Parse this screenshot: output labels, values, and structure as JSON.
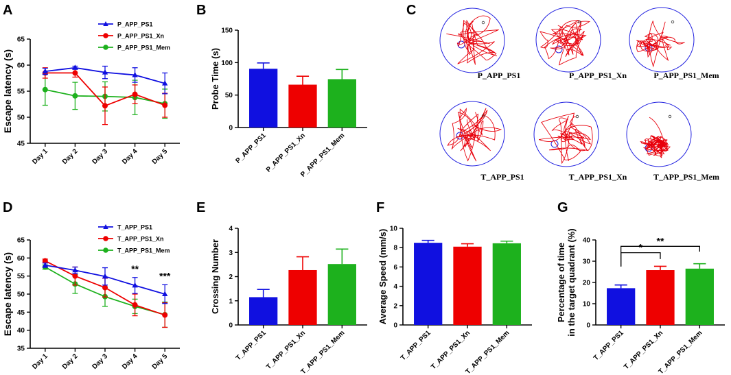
{
  "panels": {
    "A": "A",
    "B": "B",
    "C": "C",
    "D": "D",
    "E": "E",
    "F": "F",
    "G": "G"
  },
  "mazes": {
    "top": [
      "P_APP_PS1",
      "P_APP_PS1_Xn",
      "P_APP_PS1_Mem"
    ],
    "bottom": [
      "T_APP_PS1",
      "T_APP_PS1_Xn",
      "T_APP_PS1_Mem"
    ],
    "path_color": "#e8000b",
    "ring_color": "#2020e0"
  },
  "colors": {
    "blue": "#1010e0",
    "red": "#ee0000",
    "green": "#1db11d"
  },
  "chart_data": [
    {
      "id": "A",
      "type": "line",
      "ylabel": "Escape latency (s)",
      "xlabel": "",
      "categories": [
        "Day 1",
        "Day 2",
        "Day 3",
        "Day 4",
        "Day 5"
      ],
      "ylim": [
        45,
        65
      ],
      "yticks": [
        45,
        50,
        55,
        60,
        65
      ],
      "series": [
        {
          "name": "P_APP_PS1",
          "color": "#1010e0",
          "marker": "triangle",
          "values": [
            58.8,
            59.5,
            58.6,
            58.1,
            56.5
          ],
          "err": [
            0.6,
            0.3,
            1.2,
            1.4,
            2.0
          ]
        },
        {
          "name": "P_APP_PS1_Xn",
          "color": "#ee0000",
          "marker": "circle",
          "values": [
            58.5,
            58.5,
            52.2,
            54.4,
            52.3
          ],
          "err": [
            1.0,
            0.8,
            3.6,
            1.8,
            2.3
          ]
        },
        {
          "name": "P_APP_PS1_Mem",
          "color": "#1db11d",
          "marker": "circle",
          "values": [
            55.3,
            54.1,
            54.0,
            53.8,
            52.6
          ],
          "err": [
            3.0,
            2.6,
            2.8,
            3.3,
            2.8
          ]
        }
      ],
      "annotations": []
    },
    {
      "id": "B",
      "type": "bar",
      "ylabel": "Probe Time (s)",
      "categories": [
        "P_APP_PS1",
        "P_APP_PS1_Xn",
        "P_APP_PS1_Mem"
      ],
      "values": [
        90.5,
        66,
        74.5
      ],
      "err": [
        9,
        13,
        15
      ],
      "colors": [
        "#1010e0",
        "#ee0000",
        "#1db11d"
      ],
      "ylim": [
        0,
        150
      ],
      "yticks": [
        0,
        50,
        100,
        150
      ]
    },
    {
      "id": "D",
      "type": "line",
      "ylabel": "Escape latency (s)",
      "categories": [
        "Day 1",
        "Day 2",
        "Day 3",
        "Day 4",
        "Day 5"
      ],
      "ylim": [
        35,
        65
      ],
      "yticks": [
        35,
        40,
        45,
        50,
        55,
        60,
        65
      ],
      "series": [
        {
          "name": "T_APP_PS1",
          "color": "#1010e0",
          "marker": "triangle",
          "values": [
            58.0,
            56.6,
            54.9,
            52.4,
            50.0
          ],
          "err": [
            0.6,
            0.9,
            2.4,
            2.2,
            2.6
          ]
        },
        {
          "name": "T_APP_PS1_Xn",
          "color": "#ee0000",
          "marker": "circle",
          "values": [
            59.2,
            55.0,
            51.8,
            47.0,
            44.2
          ],
          "err": [
            0.5,
            2.5,
            2.6,
            3.0,
            3.4
          ]
        },
        {
          "name": "T_APP_PS1_Mem",
          "color": "#1db11d",
          "marker": "circle",
          "values": [
            57.5,
            52.8,
            49.3,
            46.6,
            44.3
          ],
          "err": [
            0.6,
            2.6,
            2.7,
            2.0,
            3.5
          ]
        }
      ],
      "annotations": [
        {
          "day": "Day 4",
          "text": "**"
        },
        {
          "day": "Day 5",
          "text": "***"
        }
      ]
    },
    {
      "id": "E",
      "type": "bar",
      "ylabel": "Crossing Number",
      "categories": [
        "T_APP_PS1",
        "T_APP_PS1_Xn",
        "T_APP_PS1_Mem"
      ],
      "values": [
        1.15,
        2.27,
        2.52
      ],
      "err": [
        0.32,
        0.55,
        0.62
      ],
      "colors": [
        "#1010e0",
        "#ee0000",
        "#1db11d"
      ],
      "ylim": [
        0,
        4
      ],
      "yticks": [
        0,
        1,
        2,
        3,
        4
      ]
    },
    {
      "id": "F",
      "type": "bar",
      "ylabel": "Average Speed (mm/s)",
      "categories": [
        "T_APP_PS1",
        "T_APP_PS1_Xn",
        "T_APP_PS1_Mem"
      ],
      "values": [
        8.5,
        8.1,
        8.45
      ],
      "err": [
        0.25,
        0.3,
        0.22
      ],
      "colors": [
        "#1010e0",
        "#ee0000",
        "#1db11d"
      ],
      "ylim": [
        0,
        10
      ],
      "yticks": [
        0,
        2,
        4,
        6,
        8,
        10
      ]
    },
    {
      "id": "G",
      "type": "bar",
      "ylabel": "Percentage of time|in the target quadrant (%)",
      "categories": [
        "T_APP_PS1",
        "T_APP_PS1_Xn",
        "T_APP_PS1_Mem"
      ],
      "values": [
        17.3,
        25.8,
        26.5
      ],
      "err": [
        1.5,
        1.8,
        2.3
      ],
      "colors": [
        "#1010e0",
        "#ee0000",
        "#1db11d"
      ],
      "ylim": [
        0,
        40
      ],
      "yticks": [
        0,
        10,
        20,
        30,
        40
      ],
      "significance": [
        {
          "from": 0,
          "to": 1,
          "text": "*"
        },
        {
          "from": 0,
          "to": 2,
          "text": "**"
        }
      ]
    }
  ]
}
